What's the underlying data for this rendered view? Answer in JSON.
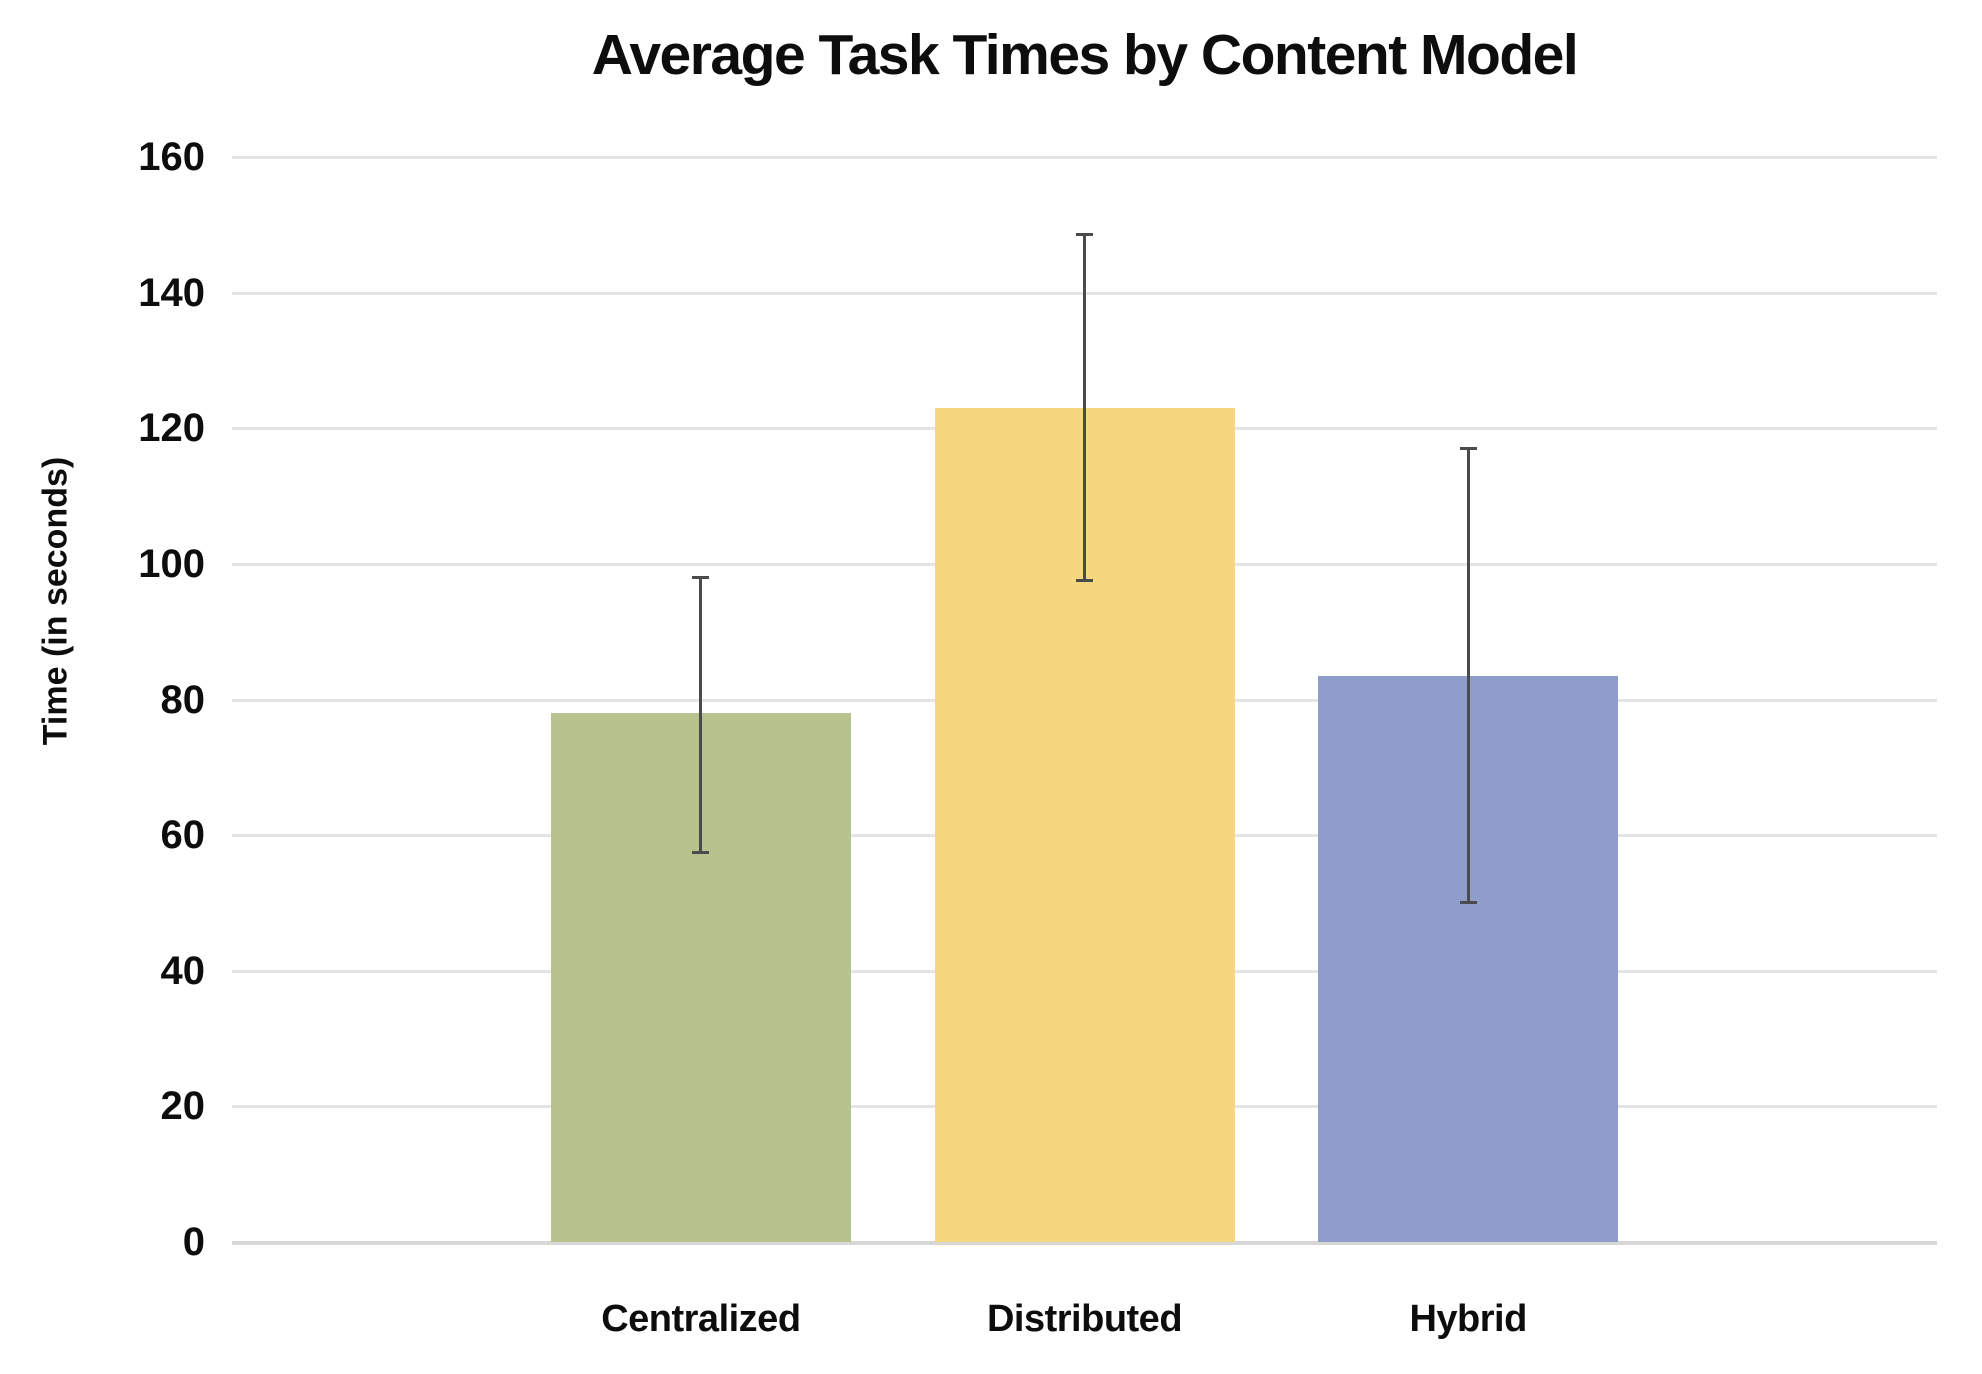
{
  "chart_data": {
    "type": "bar",
    "title": "Average Task Times by Content Model",
    "xlabel": "",
    "ylabel": "Time (in seconds)",
    "categories": [
      "Centralized",
      "Distributed",
      "Hybrid"
    ],
    "values": [
      78,
      123,
      83.5
    ],
    "error_low": [
      57.5,
      97.5,
      50
    ],
    "error_high": [
      98,
      148.5,
      117
    ],
    "bar_colors": [
      "#B7C38F",
      "#F5D77E",
      "#8E9DC9"
    ],
    "ylim": [
      0,
      160
    ],
    "yticks": [
      0,
      20,
      40,
      60,
      80,
      100,
      120,
      140,
      160
    ],
    "grid": "horizontal-only",
    "legend": "none",
    "colors": {
      "gridline": "#e4e4e4",
      "baseline": "#d7d7d7",
      "error_bar": "#4a4b4d",
      "text": "#0d0d0d",
      "background": "#ffffff"
    }
  }
}
